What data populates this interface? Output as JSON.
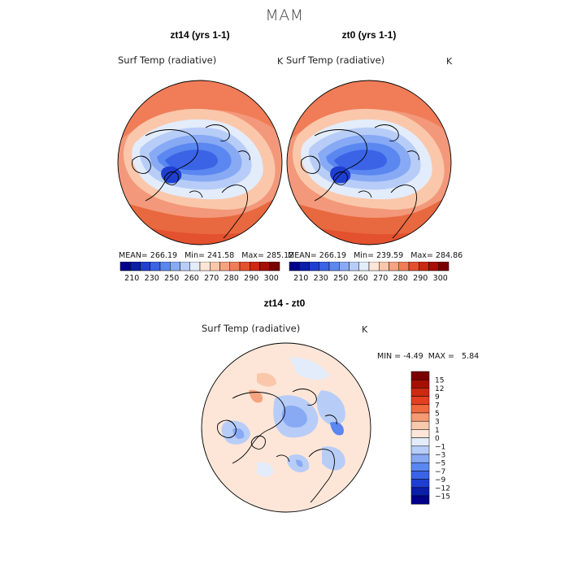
{
  "figure": {
    "title": "MAM"
  },
  "panels": [
    {
      "title": "zt14 (yrs 1-1)",
      "variable": "Surf Temp (radiative)",
      "unit": "K",
      "stats": {
        "mean_label": "MEAN=",
        "mean": "266.19",
        "min_label": "Min=",
        "min": "241.58",
        "max_label": "Max=",
        "max": "285.12"
      }
    },
    {
      "title": "zt0 (yrs 1-1)",
      "variable": "Surf Temp (radiative)",
      "unit": "K",
      "stats": {
        "mean_label": "MEAN=",
        "mean": "266.19",
        "min_label": "Min=",
        "min": "239.59",
        "max_label": "Max=",
        "max": "284.86"
      }
    },
    {
      "title": "zt14 - zt0",
      "variable": "Surf Temp (radiative)",
      "unit": "K",
      "stats": {
        "min_label": "MIN =",
        "min": "-4.49",
        "max_label": "MAX =",
        "max": "5.84"
      }
    }
  ],
  "abs_colorbar": {
    "labels": [
      "210",
      "230",
      "250",
      "260",
      "270",
      "280",
      "290",
      "300"
    ],
    "colors": [
      "#00008b",
      "#0a1ea8",
      "#1f3fd0",
      "#3a63e6",
      "#5a87f0",
      "#88aaf4",
      "#b7cdf8",
      "#e3ecfb",
      "#fde6d8",
      "#fac7ab",
      "#f6a37f",
      "#f07d57",
      "#e3512f",
      "#cc2a12",
      "#a51005",
      "#7a0000"
    ]
  },
  "diff_colorbar": {
    "labels": [
      "15",
      "12",
      "9",
      "7",
      "5",
      "3",
      "1",
      "0",
      "−1",
      "−3",
      "−5",
      "−7",
      "−9",
      "−12",
      "−15"
    ],
    "colors": [
      "#7a0000",
      "#a51005",
      "#cc2a12",
      "#e3401f",
      "#ef6a3e",
      "#f59a72",
      "#fac8ac",
      "#fde6d8",
      "#e3ecfb",
      "#b7cdf8",
      "#88aaf4",
      "#5a87f0",
      "#3a63e6",
      "#1f3fd0",
      "#0a1ea8",
      "#00008b"
    ]
  }
}
